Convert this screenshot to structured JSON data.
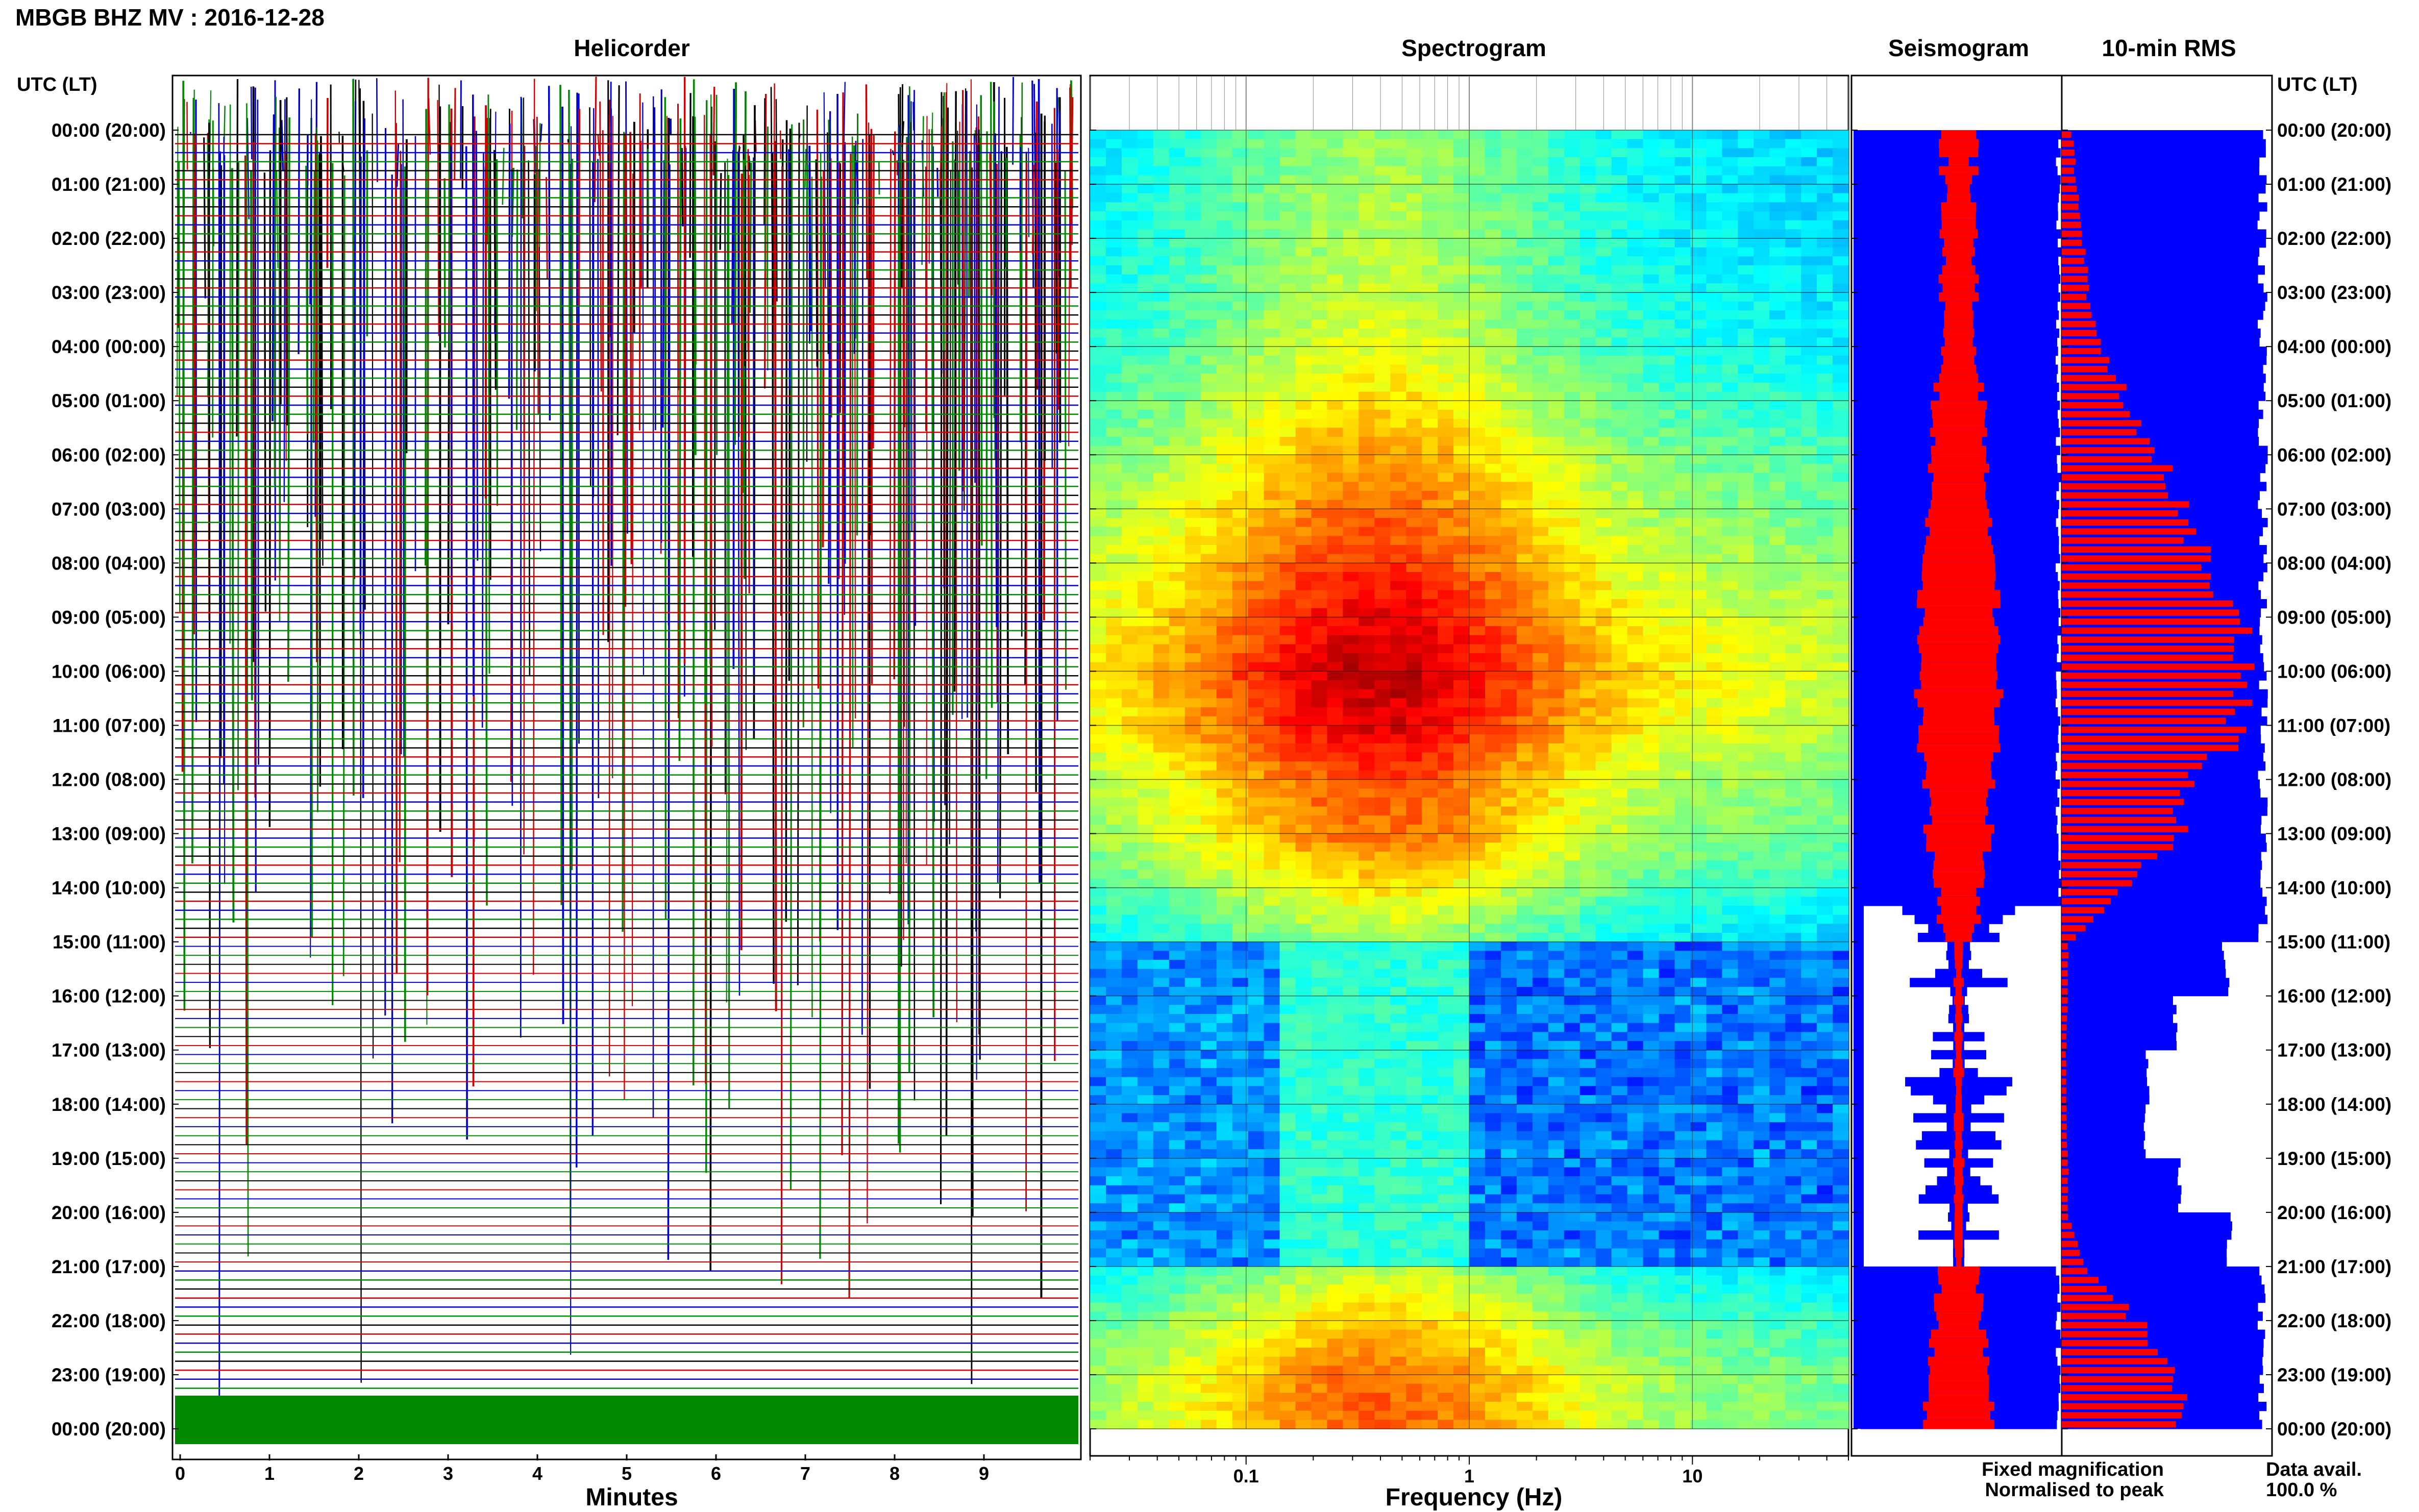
{
  "title": "MBGB BHZ MV : 2016-12-28",
  "panels": {
    "helicorder": "Helicorder",
    "spectrogram": "Spectrogram",
    "seismogram": "Seismogram",
    "rms": "10-min RMS"
  },
  "axis": {
    "time_label": "UTC (LT)",
    "minutes_label": "Minutes",
    "frequency_label": "Frequency (Hz)"
  },
  "legend": {
    "fixed": "Fixed magnification",
    "normalised": "Normalised to peak",
    "data_avail_label": "Data avail.",
    "data_avail_value": "100.0 %"
  },
  "colors": {
    "fixed": "#0000ff",
    "normalised": "#ff0000",
    "helicorder_traces": [
      "#000000",
      "#cc0000",
      "#0000cc",
      "#008800"
    ],
    "background": "#ffffff"
  },
  "chart_data": {
    "type": "heatmap",
    "time_ticks": [
      "00:00 (20:00)",
      "01:00 (21:00)",
      "02:00 (22:00)",
      "03:00 (23:00)",
      "04:00 (00:00)",
      "05:00 (01:00)",
      "06:00 (02:00)",
      "07:00 (03:00)",
      "08:00 (04:00)",
      "09:00 (05:00)",
      "10:00 (06:00)",
      "11:00 (07:00)",
      "12:00 (08:00)",
      "13:00 (09:00)",
      "14:00 (10:00)",
      "15:00 (11:00)",
      "16:00 (12:00)",
      "17:00 (13:00)",
      "18:00 (14:00)",
      "19:00 (15:00)",
      "20:00 (16:00)",
      "21:00 (17:00)",
      "22:00 (18:00)",
      "23:00 (19:00)",
      "00:00 (20:00)"
    ],
    "minute_ticks": [
      "0",
      "1",
      "2",
      "3",
      "4",
      "5",
      "6",
      "7",
      "8",
      "9"
    ],
    "frequency_ticks": [
      {
        "value": 0.1,
        "label": "0.1"
      },
      {
        "value": 1,
        "label": "1"
      },
      {
        "value": 10,
        "label": "10"
      }
    ],
    "frequency_range": [
      0.02,
      50
    ],
    "frequency_scale": "log",
    "minutes_range": [
      0,
      10
    ],
    "hours_range": [
      0,
      24
    ],
    "rms_hourly_normalised": [
      0.05,
      0.07,
      0.1,
      0.13,
      0.2,
      0.32,
      0.46,
      0.58,
      0.7,
      0.82,
      0.92,
      0.84,
      0.62,
      0.55,
      0.28,
      0.03,
      0.03,
      0.02,
      0.02,
      0.03,
      0.03,
      0.12,
      0.38,
      0.58
    ],
    "rms_hourly_fixed": [
      0.98,
      0.98,
      0.98,
      0.98,
      0.98,
      0.98,
      0.98,
      0.98,
      0.98,
      0.98,
      0.98,
      0.98,
      0.98,
      0.98,
      0.98,
      0.8,
      0.55,
      0.42,
      0.4,
      0.58,
      0.82,
      0.98,
      0.98,
      0.98
    ]
  }
}
